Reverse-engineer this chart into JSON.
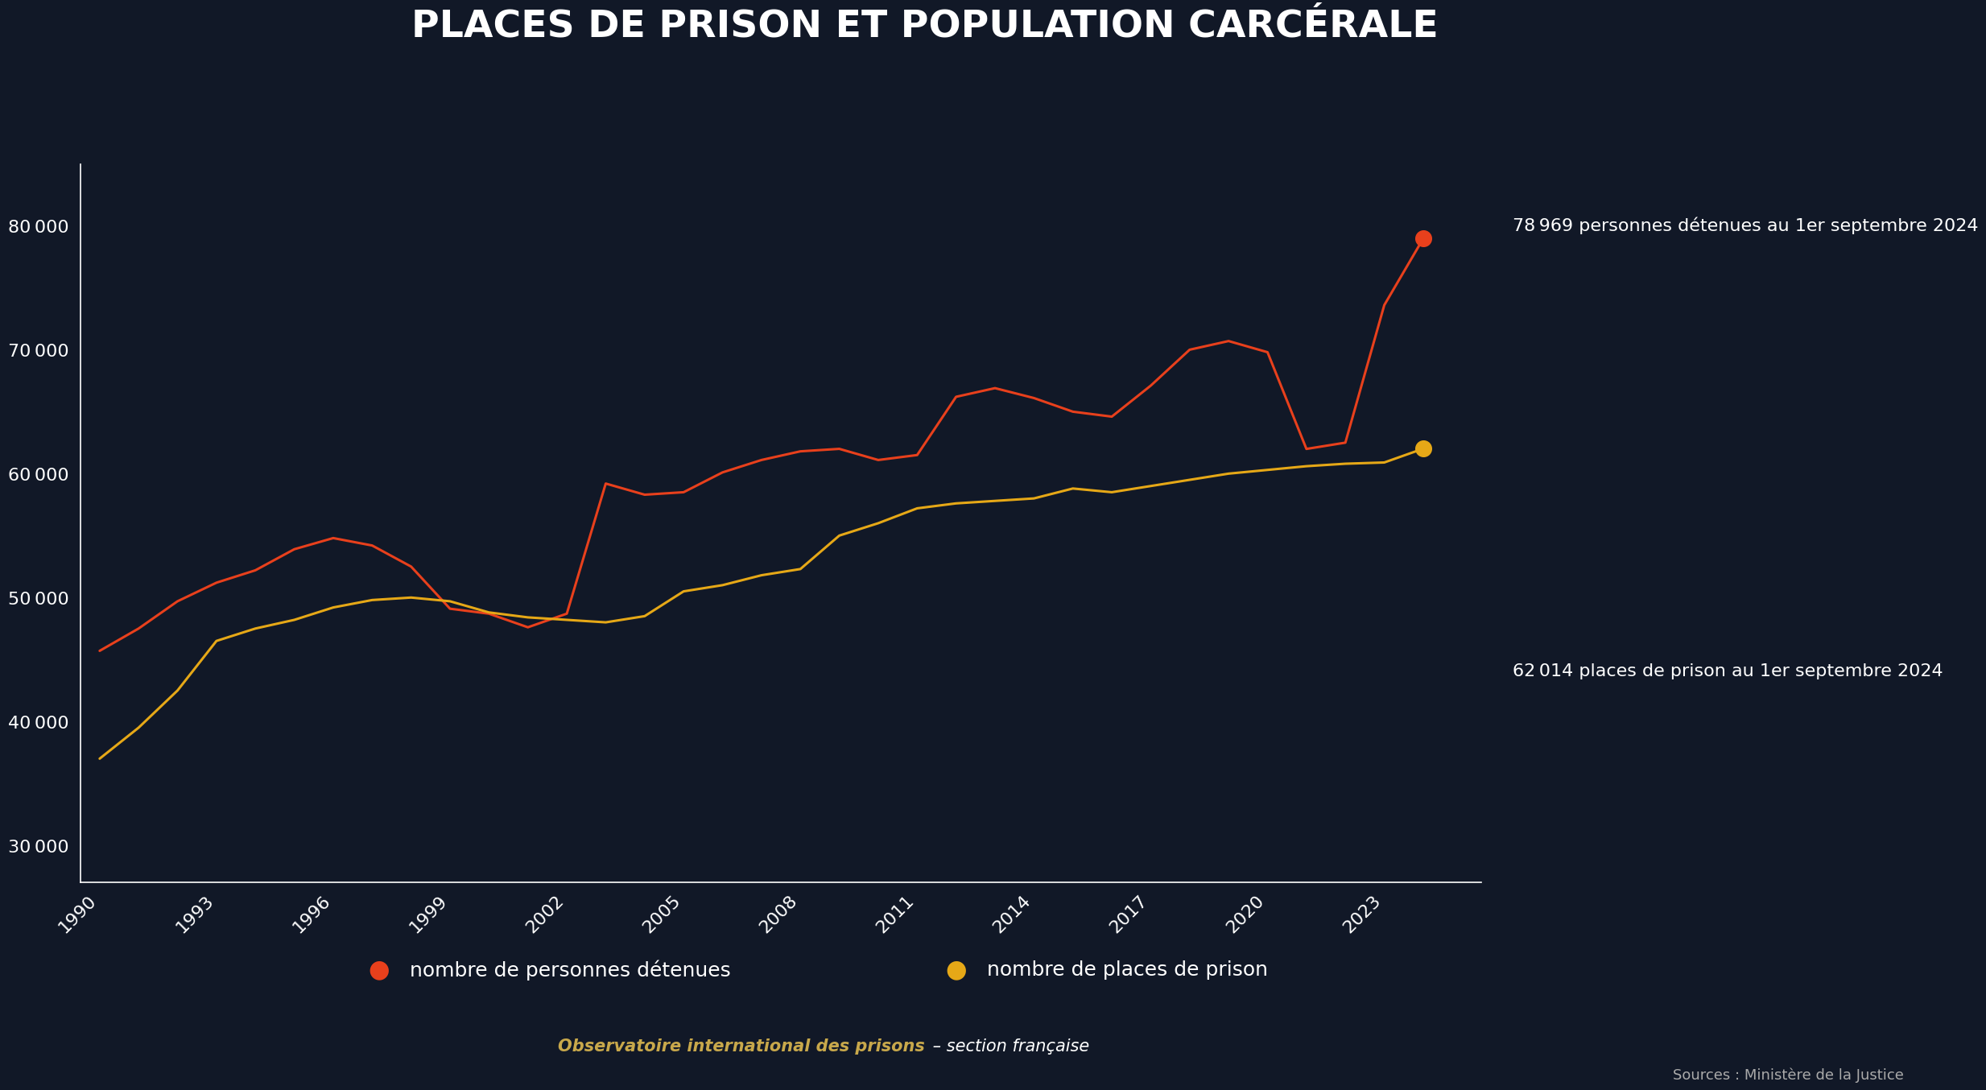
{
  "title": "PLACES DE PRISON ET POPULATION CARCÉRALE",
  "bg_color": "#111827",
  "line1_color": "#e8401c",
  "line2_color": "#e6a817",
  "annotation1": "78 969 personnes détenues au 1er septembre 2024",
  "annotation2": "62 014 places de prison au 1er septembre 2024",
  "legend1": "nombre de personnes détenues",
  "legend2": "nombre de places de prison",
  "footer_bold": "Observatoire international des prisons",
  "footer_regular": " – section française",
  "footer_right": "Sources : Ministère de la Justice",
  "detenues": {
    "years": [
      1990,
      1991,
      1992,
      1993,
      1994,
      1995,
      1996,
      1997,
      1998,
      1999,
      2000,
      2001,
      2002,
      2003,
      2004,
      2005,
      2006,
      2007,
      2008,
      2009,
      2010,
      2011,
      2012,
      2013,
      2014,
      2015,
      2016,
      2017,
      2018,
      2019,
      2020,
      2021,
      2022,
      2023,
      2024
    ],
    "values": [
      45700,
      47500,
      49700,
      51200,
      52200,
      53900,
      54800,
      54200,
      52500,
      49100,
      48700,
      47600,
      48700,
      59200,
      58300,
      58500,
      60100,
      61100,
      61800,
      62000,
      61100,
      61500,
      66200,
      66900,
      66100,
      65000,
      64600,
      67100,
      70000,
      70700,
      69800,
      61994,
      62500,
      73600,
      78969
    ]
  },
  "places": {
    "years": [
      1990,
      1991,
      1992,
      1993,
      1994,
      1995,
      1996,
      1997,
      1998,
      1999,
      2000,
      2001,
      2002,
      2003,
      2004,
      2005,
      2006,
      2007,
      2008,
      2009,
      2010,
      2011,
      2012,
      2013,
      2014,
      2015,
      2016,
      2017,
      2018,
      2019,
      2020,
      2021,
      2022,
      2023,
      2024
    ],
    "values": [
      37000,
      39500,
      42500,
      46500,
      47500,
      48200,
      49200,
      49800,
      50000,
      49700,
      48800,
      48400,
      48200,
      48000,
      48500,
      50500,
      51000,
      51800,
      52300,
      55000,
      56000,
      57200,
      57600,
      57800,
      58000,
      58800,
      58500,
      59000,
      59500,
      60000,
      60300,
      60600,
      60800,
      60900,
      62014
    ]
  },
  "ylim": [
    27000,
    85000
  ],
  "yticks": [
    30000,
    40000,
    50000,
    60000,
    70000,
    80000
  ],
  "xtick_years": [
    1990,
    1993,
    1996,
    1999,
    2002,
    2005,
    2008,
    2011,
    2014,
    2017,
    2020,
    2023
  ],
  "xlim_left": 1989.5,
  "xlim_right": 2025.5
}
